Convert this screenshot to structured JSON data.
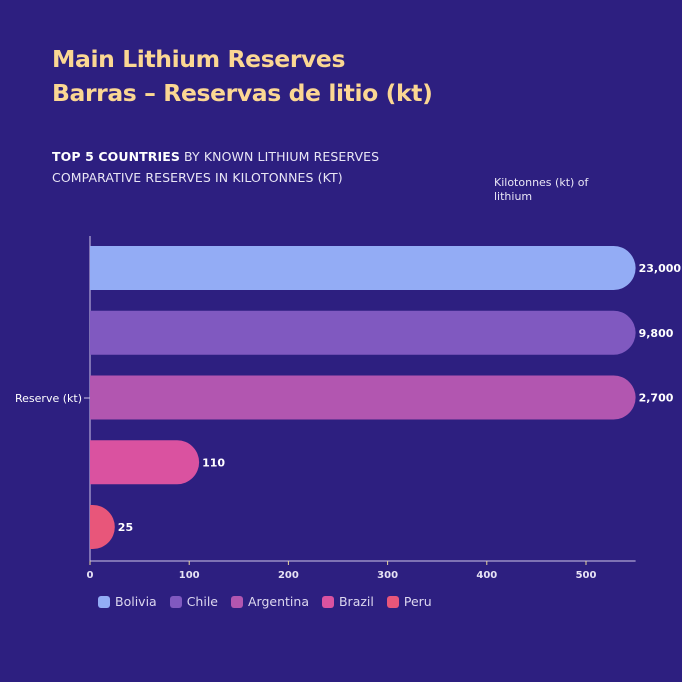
{
  "title": {
    "line1": "Main Lithium Reserves",
    "line2": "Barras – Reservas de litio (kt)"
  },
  "subtitle": {
    "bold": "TOP 5 COUNTRIES",
    "rest": " BY KNOWN LITHIUM RESERVES",
    "line2": "COMPARATIVE RESERVES IN KILOTONNES (KT)"
  },
  "chart_data": {
    "type": "bar",
    "orientation": "horizontal",
    "ylabel": "Reserve (kt)",
    "xlabel": "Kilotonnes (kt) of lithium",
    "xlim": [
      0,
      550
    ],
    "xticks": [
      "0",
      "100",
      "200",
      "300",
      "400",
      "500"
    ],
    "grid": false,
    "legend_position": "bottom",
    "series": [
      {
        "name": "Bolivia",
        "value": 23000,
        "color": "#93acf5"
      },
      {
        "name": "Chile",
        "value": 9800,
        "color": "#8059c0"
      },
      {
        "name": "Argentina",
        "value": 2700,
        "color": "#b256b0"
      },
      {
        "name": "Brazil",
        "value": 110,
        "color": "#da52a0"
      },
      {
        "name": "Peru",
        "value": 25,
        "color": "#e8567a"
      }
    ]
  }
}
